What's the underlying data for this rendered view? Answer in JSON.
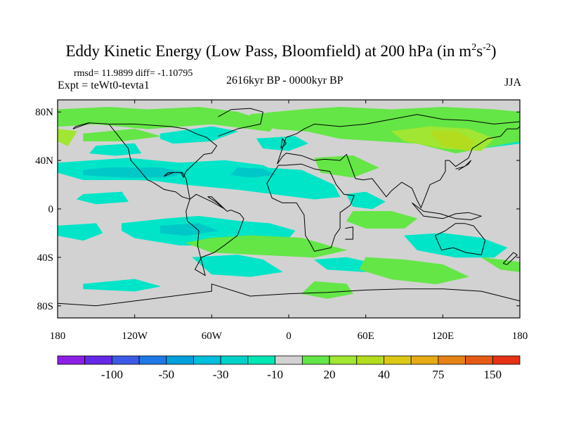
{
  "title": {
    "main": "Eddy Kinetic Energy (Low Pass, Bloomfield) at 200 hPa (in m",
    "sup1": "2",
    "s": "s",
    "sup2": "-2",
    "close": ")"
  },
  "stats": "rmsd= 11.9899 diff= -1.10795",
  "experiment": "Expt = teWt0-tevta1",
  "period": "2616kyr BP - 0000kyr BP",
  "season": "JJA",
  "map": {
    "lat_ticks": [
      {
        "lat": 80,
        "label": "80N"
      },
      {
        "lat": 40,
        "label": "40N"
      },
      {
        "lat": 0,
        "label": "0"
      },
      {
        "lat": -40,
        "label": "40S"
      },
      {
        "lat": -80,
        "label": "80S"
      }
    ],
    "lon_ticks": [
      {
        "lon": -180,
        "label": "180"
      },
      {
        "lon": -120,
        "label": "120W"
      },
      {
        "lon": -60,
        "label": "60W"
      },
      {
        "lon": 0,
        "label": "0"
      },
      {
        "lon": 60,
        "label": "60E"
      },
      {
        "lon": 120,
        "label": "120E"
      },
      {
        "lon": 180,
        "label": "180"
      }
    ],
    "background_color": "#d2d2d2",
    "regions": [
      {
        "c": "#00e5c8",
        "lon": [
          -180,
          -125,
          -85,
          -50,
          -20,
          -5,
          -25,
          -70,
          -120,
          -160,
          -180
        ],
        "lat": [
          38,
          42,
          38,
          40,
          36,
          28,
          20,
          22,
          24,
          24,
          30
        ]
      },
      {
        "c": "#00e5c8",
        "lon": [
          -110,
          -80,
          -50,
          -20,
          10,
          35,
          40,
          20,
          -10,
          -40,
          -80,
          -110
        ],
        "lat": [
          28,
          26,
          30,
          34,
          32,
          20,
          10,
          8,
          12,
          16,
          20,
          24
        ]
      },
      {
        "c": "#00e5c8",
        "lon": [
          -130,
          -95,
          -70,
          -40,
          -15,
          5,
          0,
          -20,
          -50,
          -85,
          -120,
          -130
        ],
        "lat": [
          -12,
          -8,
          -6,
          -10,
          -12,
          -18,
          -24,
          -30,
          -30,
          -30,
          -24,
          -18
        ]
      },
      {
        "c": "#00e5c8",
        "lon": [
          -180,
          -150,
          -145,
          -160,
          -180
        ],
        "lat": [
          -14,
          -12,
          -20,
          -26,
          -22
        ]
      },
      {
        "c": "#00e5c8",
        "lon": [
          -160,
          -130,
          -125,
          -150,
          -165
        ],
        "lat": [
          12,
          14,
          6,
          4,
          8
        ]
      },
      {
        "c": "#00e5c8",
        "lon": [
          -75,
          -40,
          -20,
          -5,
          -30,
          -60
        ],
        "lat": [
          -40,
          -38,
          -42,
          -52,
          -56,
          -54
        ]
      },
      {
        "c": "#00e5c8",
        "lon": [
          -160,
          -120,
          -100,
          -120,
          -160
        ],
        "lat": [
          -62,
          -58,
          -64,
          -68,
          -66
        ]
      },
      {
        "c": "#00e5c8",
        "lon": [
          -100,
          -60,
          -40,
          -60,
          -90,
          -100
        ],
        "lat": [
          62,
          68,
          64,
          56,
          54,
          58
        ]
      },
      {
        "c": "#00e5c8",
        "lon": [
          -25,
          5,
          15,
          0,
          -20
        ],
        "lat": [
          58,
          60,
          54,
          48,
          50
        ]
      },
      {
        "c": "#00e5c8",
        "lon": [
          45,
          60,
          75,
          65,
          50
        ],
        "lat": [
          12,
          14,
          6,
          0,
          2
        ]
      },
      {
        "c": "#00e5c8",
        "lon": [
          90,
          120,
          150,
          170,
          160,
          130,
          100
        ],
        "lat": [
          -22,
          -20,
          -24,
          -32,
          -40,
          -40,
          -34
        ]
      },
      {
        "c": "#00e5c8",
        "lon": [
          20,
          45,
          70,
          60,
          30
        ],
        "lat": [
          -42,
          -40,
          -46,
          -52,
          -50
        ]
      },
      {
        "c": "#00e5c8",
        "lon": [
          130,
          160,
          180,
          180,
          150,
          130
        ],
        "lat": [
          56,
          60,
          62,
          54,
          50,
          52
        ]
      },
      {
        "c": "#00e5c8",
        "lon": [
          -150,
          -120,
          -115,
          -135,
          -155
        ],
        "lat": [
          52,
          54,
          46,
          44,
          46
        ]
      },
      {
        "c": "#00c8c8",
        "lon": [
          -160,
          -140,
          -100,
          -80,
          -95,
          -130,
          -160
        ],
        "lat": [
          32,
          34,
          34,
          30,
          26,
          26,
          28
        ]
      },
      {
        "c": "#00c8c8",
        "lon": [
          -40,
          -20,
          -10,
          -30,
          -45
        ],
        "lat": [
          34,
          33,
          28,
          26,
          28
        ]
      },
      {
        "c": "#00c8c8",
        "lon": [
          -100,
          -70,
          -55,
          -80,
          -100
        ],
        "lat": [
          -14,
          -12,
          -18,
          -22,
          -20
        ]
      },
      {
        "c": "#64e646",
        "lon": [
          -180,
          -140,
          -110,
          -70,
          -40,
          -10,
          -15,
          -60,
          -110,
          -150,
          -180
        ],
        "lat": [
          82,
          84,
          82,
          84,
          80,
          70,
          64,
          70,
          66,
          70,
          68
        ]
      },
      {
        "c": "#64e646",
        "lon": [
          -160,
          -120,
          -100,
          -130,
          -160
        ],
        "lat": [
          62,
          66,
          60,
          56,
          56
        ]
      },
      {
        "c": "#64e646",
        "lon": [
          -30,
          10,
          40,
          80,
          120,
          160,
          180,
          180,
          150,
          130,
          100,
          70,
          40,
          15,
          -10,
          -30
        ],
        "lat": [
          78,
          82,
          84,
          82,
          84,
          82,
          80,
          56,
          50,
          46,
          54,
          56,
          58,
          64,
          66,
          72
        ]
      },
      {
        "c": "#64e646",
        "lon": [
          20,
          50,
          70,
          50,
          25
        ],
        "lat": [
          42,
          44,
          34,
          26,
          30
        ]
      },
      {
        "c": "#64e646",
        "lon": [
          50,
          80,
          100,
          90,
          60,
          45
        ],
        "lat": [
          -2,
          -2,
          -8,
          -16,
          -16,
          -10
        ]
      },
      {
        "c": "#64e646",
        "lon": [
          -80,
          -60,
          -30,
          10,
          30,
          45,
          20,
          -20,
          -60
        ],
        "lat": [
          -28,
          -24,
          -22,
          -24,
          -30,
          -34,
          -40,
          -38,
          -36
        ]
      },
      {
        "c": "#64e646",
        "lon": [
          60,
          90,
          120,
          140,
          115,
          80,
          55
        ],
        "lat": [
          -40,
          -42,
          -46,
          -56,
          -62,
          -58,
          -50
        ]
      },
      {
        "c": "#64e646",
        "lon": [
          150,
          180,
          180,
          165
        ],
        "lat": [
          -40,
          -44,
          -52,
          -50
        ]
      },
      {
        "c": "#64e646",
        "lon": [
          20,
          45,
          50,
          30,
          10
        ],
        "lat": [
          -60,
          -62,
          -70,
          -74,
          -70
        ]
      },
      {
        "c": "#a0e632",
        "lon": [
          80,
          110,
          140,
          160,
          150,
          120,
          90
        ],
        "lat": [
          64,
          68,
          66,
          58,
          48,
          50,
          56
        ]
      },
      {
        "c": "#a0e632",
        "lon": [
          -180,
          -165,
          -172,
          -180
        ],
        "lat": [
          66,
          64,
          52,
          56
        ]
      },
      {
        "c": "#b4dc1e",
        "lon": [
          110,
          130,
          145,
          140,
          120
        ],
        "lat": [
          64,
          64,
          56,
          48,
          52
        ]
      }
    ],
    "coastlines": [
      {
        "lon": [
          -168,
          -155,
          -140,
          -125,
          -123,
          -117,
          -110,
          -106,
          -97,
          -88,
          -83,
          -77,
          -80,
          -83,
          -90,
          -97,
          -94,
          -84,
          -82,
          -80,
          -76,
          -70,
          -66,
          -60,
          -56,
          -64,
          -72,
          -80,
          -92,
          -105,
          -120,
          -140,
          -156,
          -166,
          -168
        ],
        "lat": [
          66,
          71,
          70,
          50,
          40,
          33,
          24,
          22,
          16,
          14,
          10,
          8,
          25,
          30,
          30,
          27,
          30,
          30,
          26,
          31,
          35,
          41,
          45,
          46,
          52,
          59,
          62,
          66,
          68,
          69,
          70,
          70,
          71,
          68,
          66
        ]
      },
      {
        "lon": [
          -77,
          -80,
          -79,
          -70,
          -71,
          -65,
          -73,
          -68,
          -58,
          -50,
          -40,
          -35,
          -38,
          -45,
          -48,
          -57,
          -63,
          -60,
          -50,
          -60,
          -72,
          -77
        ],
        "lat": [
          8,
          -2,
          -10,
          -18,
          -30,
          -55,
          -50,
          -40,
          -36,
          -30,
          -22,
          -8,
          -4,
          -1,
          -2,
          6,
          10,
          10,
          0,
          6,
          12,
          8
        ]
      },
      {
        "lon": [
          -17,
          -13,
          -8,
          -3,
          10,
          20,
          25,
          32,
          37,
          43,
          51,
          48,
          40,
          40,
          36,
          33,
          20,
          17,
          13,
          12,
          9,
          6,
          -5,
          -13,
          -17
        ],
        "lat": [
          21,
          28,
          36,
          36,
          37,
          33,
          32,
          31,
          20,
          12,
          11,
          3,
          -3,
          -16,
          -22,
          -32,
          -35,
          -29,
          -22,
          -5,
          0,
          5,
          5,
          9,
          21
        ]
      },
      {
        "lon": [
          -9,
          -5,
          -2,
          10,
          20,
          28,
          40,
          45,
          52,
          58,
          65,
          76,
          80,
          88,
          96,
          100,
          103,
          110,
          118,
          122,
          122,
          125,
          130,
          140,
          143,
          155,
          165,
          170,
          178,
          180,
          180,
          160,
          140,
          120,
          100,
          80,
          60,
          40,
          20,
          12,
          6,
          -2,
          -4,
          -9
        ],
        "lat": [
          37,
          43,
          46,
          44,
          40,
          41,
          40,
          45,
          25,
          24,
          25,
          10,
          15,
          22,
          17,
          7,
          1,
          20,
          24,
          31,
          40,
          40,
          35,
          42,
          50,
          58,
          60,
          66,
          66,
          68,
          72,
          70,
          73,
          74,
          78,
          74,
          70,
          68,
          70,
          66,
          62,
          59,
          53,
          37
        ]
      },
      {
        "lon": [
          114,
          122,
          130,
          137,
          144,
          153,
          150,
          138,
          128,
          119,
          114
        ],
        "lat": [
          -22,
          -18,
          -12,
          -12,
          -14,
          -26,
          -38,
          -36,
          -32,
          -34,
          -22
        ]
      },
      {
        "lon": [
          -55,
          -40,
          -22,
          -20,
          -30,
          -45,
          -55
        ],
        "lat": [
          60,
          66,
          70,
          80,
          83,
          82,
          76
        ]
      },
      {
        "lon": [
          -180,
          -150,
          -120,
          -90,
          -60,
          -60,
          -30,
          0,
          30,
          60,
          90,
          120,
          150,
          180
        ],
        "lat": [
          -78,
          -80,
          -76,
          -72,
          -68,
          -62,
          -72,
          -70,
          -69,
          -67,
          -66,
          -66,
          -68,
          -76
        ]
      },
      {
        "lon": [
          44,
          50,
          50,
          44
        ],
        "lat": [
          -16,
          -15,
          -25,
          -25
        ]
      },
      {
        "lon": [
          96,
          105,
          120,
          130,
          140,
          150,
          142,
          130,
          118,
          105,
          96
        ],
        "lat": [
          5,
          -6,
          -8,
          -4,
          -3,
          -6,
          -9,
          -8,
          -4,
          -2,
          5
        ]
      },
      {
        "lon": [
          130,
          137,
          142,
          140,
          132
        ],
        "lat": [
          33,
          35,
          40,
          37,
          32
        ]
      },
      {
        "lon": [
          -6,
          -2,
          -5,
          -6
        ],
        "lat": [
          50,
          54,
          58,
          50
        ]
      },
      {
        "lon": [
          167,
          175,
          178,
          170,
          167
        ],
        "lat": [
          -45,
          -36,
          -38,
          -46,
          -45
        ]
      }
    ]
  },
  "colorbar": {
    "colors": [
      "#8c1ee6",
      "#6428e6",
      "#3c5ae6",
      "#1e78e6",
      "#00a0dc",
      "#00bedc",
      "#00d2c8",
      "#00e6b4",
      "#d2d2d2",
      "#64e646",
      "#a0e632",
      "#b4dc1e",
      "#dcc814",
      "#e6aa14",
      "#e68214",
      "#e65a14",
      "#e63214"
    ],
    "labels": [
      {
        "index": 2,
        "text": "-100"
      },
      {
        "index": 4,
        "text": "-50"
      },
      {
        "index": 6,
        "text": "-30"
      },
      {
        "index": 8,
        "text": "-10"
      },
      {
        "index": 10,
        "text": "20"
      },
      {
        "index": 12,
        "text": "40"
      },
      {
        "index": 14,
        "text": "75"
      },
      {
        "index": 16,
        "text": "150"
      }
    ]
  }
}
